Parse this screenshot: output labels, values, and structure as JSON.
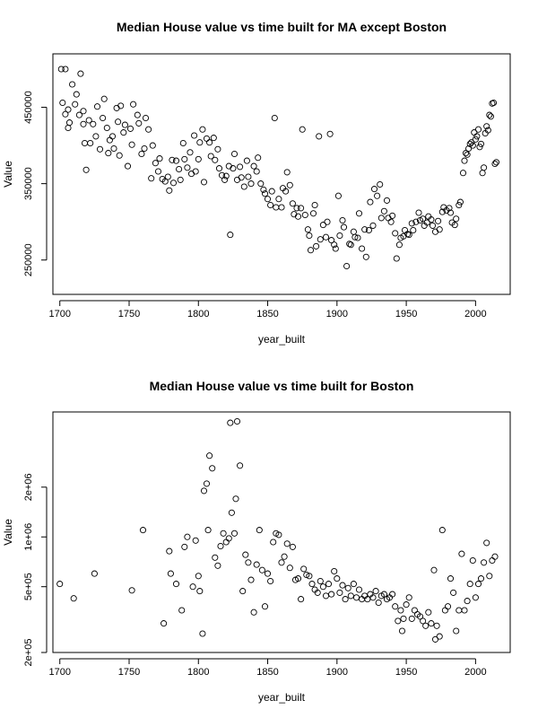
{
  "chart_data": [
    {
      "type": "scatter",
      "title": "Median House value vs time built for MA except Boston",
      "xlabel": "year_built",
      "ylabel": "Value",
      "xlim": [
        1695,
        2025
      ],
      "ylim": [
        205000,
        520000
      ],
      "x_ticks": [
        1700,
        1750,
        1800,
        1850,
        1900,
        1950,
        2000
      ],
      "y_ticks": [
        250000,
        350000,
        450000
      ],
      "y_tick_labels": [
        "250000",
        "350000",
        "450000"
      ],
      "grid": false,
      "legend": "none",
      "points": [
        [
          1701,
          500000
        ],
        [
          1702,
          456000
        ],
        [
          1704,
          441000
        ],
        [
          1704,
          500000
        ],
        [
          1706,
          423000
        ],
        [
          1706,
          447000
        ],
        [
          1707,
          430000
        ],
        [
          1709,
          480000
        ],
        [
          1711,
          454000
        ],
        [
          1712,
          467000
        ],
        [
          1714,
          440000
        ],
        [
          1715,
          494000
        ],
        [
          1717,
          428000
        ],
        [
          1717,
          445000
        ],
        [
          1718,
          403000
        ],
        [
          1719,
          368000
        ],
        [
          1721,
          433000
        ],
        [
          1722,
          403000
        ],
        [
          1724,
          428000
        ],
        [
          1726,
          412000
        ],
        [
          1727,
          451000
        ],
        [
          1729,
          395000
        ],
        [
          1731,
          436000
        ],
        [
          1732,
          461000
        ],
        [
          1734,
          423000
        ],
        [
          1735,
          390000
        ],
        [
          1736,
          407000
        ],
        [
          1738,
          412000
        ],
        [
          1739,
          396000
        ],
        [
          1741,
          449000
        ],
        [
          1742,
          431000
        ],
        [
          1743,
          387000
        ],
        [
          1744,
          452000
        ],
        [
          1746,
          417000
        ],
        [
          1747,
          427000
        ],
        [
          1749,
          373000
        ],
        [
          1751,
          422000
        ],
        [
          1752,
          401000
        ],
        [
          1753,
          454000
        ],
        [
          1756,
          440000
        ],
        [
          1757,
          429000
        ],
        [
          1759,
          389000
        ],
        [
          1761,
          396000
        ],
        [
          1762,
          436000
        ],
        [
          1764,
          421000
        ],
        [
          1766,
          357000
        ],
        [
          1767,
          400000
        ],
        [
          1769,
          377000
        ],
        [
          1771,
          366000
        ],
        [
          1772,
          383000
        ],
        [
          1774,
          356000
        ],
        [
          1776,
          353000
        ],
        [
          1778,
          359000
        ],
        [
          1779,
          341000
        ],
        [
          1781,
          381000
        ],
        [
          1782,
          351000
        ],
        [
          1784,
          380000
        ],
        [
          1786,
          369000
        ],
        [
          1787,
          355000
        ],
        [
          1789,
          403000
        ],
        [
          1790,
          382000
        ],
        [
          1792,
          371000
        ],
        [
          1794,
          391000
        ],
        [
          1795,
          363000
        ],
        [
          1797,
          413000
        ],
        [
          1798,
          366000
        ],
        [
          1800,
          382000
        ],
        [
          1801,
          404000
        ],
        [
          1803,
          421000
        ],
        [
          1804,
          352000
        ],
        [
          1806,
          409000
        ],
        [
          1808,
          404000
        ],
        [
          1809,
          386000
        ],
        [
          1811,
          410000
        ],
        [
          1812,
          381000
        ],
        [
          1814,
          395000
        ],
        [
          1815,
          370000
        ],
        [
          1817,
          361000
        ],
        [
          1819,
          355000
        ],
        [
          1820,
          360000
        ],
        [
          1822,
          373000
        ],
        [
          1823,
          283000
        ],
        [
          1825,
          370000
        ],
        [
          1826,
          389000
        ],
        [
          1828,
          355000
        ],
        [
          1830,
          372000
        ],
        [
          1831,
          358000
        ],
        [
          1833,
          346000
        ],
        [
          1835,
          380000
        ],
        [
          1836,
          359000
        ],
        [
          1838,
          350000
        ],
        [
          1840,
          373000
        ],
        [
          1842,
          366000
        ],
        [
          1843,
          384000
        ],
        [
          1845,
          350000
        ],
        [
          1847,
          342000
        ],
        [
          1848,
          337000
        ],
        [
          1850,
          330000
        ],
        [
          1852,
          322000
        ],
        [
          1853,
          340000
        ],
        [
          1855,
          436000
        ],
        [
          1856,
          319000
        ],
        [
          1858,
          330000
        ],
        [
          1860,
          319000
        ],
        [
          1861,
          344000
        ],
        [
          1863,
          340000
        ],
        [
          1864,
          365000
        ],
        [
          1866,
          348000
        ],
        [
          1868,
          324000
        ],
        [
          1869,
          310000
        ],
        [
          1871,
          318000
        ],
        [
          1872,
          307000
        ],
        [
          1874,
          318000
        ],
        [
          1875,
          421000
        ],
        [
          1877,
          309000
        ],
        [
          1879,
          290000
        ],
        [
          1880,
          282000
        ],
        [
          1881,
          263000
        ],
        [
          1883,
          311000
        ],
        [
          1884,
          322000
        ],
        [
          1885,
          268000
        ],
        [
          1887,
          412000
        ],
        [
          1888,
          277000
        ],
        [
          1890,
          296000
        ],
        [
          1892,
          280000
        ],
        [
          1893,
          300000
        ],
        [
          1895,
          415000
        ],
        [
          1896,
          276000
        ],
        [
          1898,
          270000
        ],
        [
          1899,
          265000
        ],
        [
          1901,
          334000
        ],
        [
          1902,
          282000
        ],
        [
          1904,
          302000
        ],
        [
          1905,
          293000
        ],
        [
          1907,
          242000
        ],
        [
          1909,
          271000
        ],
        [
          1910,
          270000
        ],
        [
          1912,
          287000
        ],
        [
          1913,
          280000
        ],
        [
          1915,
          279000
        ],
        [
          1916,
          311000
        ],
        [
          1918,
          265000
        ],
        [
          1920,
          290000
        ],
        [
          1921,
          254000
        ],
        [
          1923,
          289000
        ],
        [
          1924,
          326000
        ],
        [
          1926,
          295000
        ],
        [
          1927,
          343000
        ],
        [
          1929,
          334000
        ],
        [
          1931,
          349000
        ],
        [
          1932,
          305000
        ],
        [
          1934,
          314000
        ],
        [
          1936,
          328000
        ],
        [
          1937,
          305000
        ],
        [
          1939,
          300000
        ],
        [
          1940,
          308000
        ],
        [
          1942,
          285000
        ],
        [
          1943,
          252000
        ],
        [
          1945,
          270000
        ],
        [
          1946,
          279000
        ],
        [
          1948,
          281000
        ],
        [
          1949,
          289000
        ],
        [
          1951,
          284000
        ],
        [
          1952,
          283000
        ],
        [
          1954,
          298000
        ],
        [
          1955,
          289000
        ],
        [
          1957,
          300000
        ],
        [
          1959,
          312000
        ],
        [
          1960,
          302000
        ],
        [
          1962,
          304000
        ],
        [
          1963,
          295000
        ],
        [
          1965,
          299000
        ],
        [
          1966,
          307000
        ],
        [
          1968,
          303000
        ],
        [
          1969,
          295000
        ],
        [
          1971,
          287000
        ],
        [
          1973,
          301000
        ],
        [
          1974,
          290000
        ],
        [
          1976,
          313000
        ],
        [
          1977,
          319000
        ],
        [
          1979,
          315000
        ],
        [
          1981,
          318000
        ],
        [
          1982,
          312000
        ],
        [
          1983,
          299000
        ],
        [
          1985,
          296000
        ],
        [
          1986,
          304000
        ],
        [
          1988,
          322000
        ],
        [
          1989,
          326000
        ],
        [
          1991,
          364000
        ],
        [
          1992,
          380000
        ],
        [
          1993,
          390000
        ],
        [
          1994,
          388000
        ],
        [
          1995,
          396000
        ],
        [
          1996,
          402000
        ],
        [
          1997,
          404000
        ],
        [
          1998,
          400000
        ],
        [
          1999,
          417000
        ],
        [
          2000,
          408000
        ],
        [
          2001,
          412000
        ],
        [
          2002,
          421000
        ],
        [
          2003,
          398000
        ],
        [
          2004,
          402000
        ],
        [
          2005,
          364000
        ],
        [
          2006,
          371000
        ],
        [
          2007,
          416000
        ],
        [
          2008,
          425000
        ],
        [
          2009,
          420000
        ],
        [
          2010,
          440000
        ],
        [
          2011,
          438000
        ],
        [
          2012,
          455000
        ],
        [
          2013,
          456000
        ],
        [
          2014,
          376000
        ],
        [
          2015,
          378000
        ]
      ]
    },
    {
      "type": "scatter",
      "title": "Median House value vs time built for Boston",
      "xlabel": "year_built",
      "ylabel": "Value",
      "y_scale": "log",
      "xlim": [
        1695,
        2025
      ],
      "ylim": [
        200000,
        5700000
      ],
      "x_ticks": [
        1700,
        1750,
        1800,
        1850,
        1900,
        1950,
        2000
      ],
      "y_ticks": [
        200000,
        500000,
        1000000,
        2000000
      ],
      "y_tick_labels": [
        "2e+05",
        "5e+05",
        "1e+06",
        "2e+06"
      ],
      "grid": false,
      "legend": "none",
      "points": [
        [
          1700,
          520000
        ],
        [
          1710,
          425000
        ],
        [
          1725,
          600000
        ],
        [
          1752,
          475000
        ],
        [
          1760,
          1100000
        ],
        [
          1775,
          300000
        ],
        [
          1779,
          820000
        ],
        [
          1780,
          600000
        ],
        [
          1784,
          520000
        ],
        [
          1788,
          360000
        ],
        [
          1790,
          870000
        ],
        [
          1792,
          1000000
        ],
        [
          1796,
          500000
        ],
        [
          1798,
          950000
        ],
        [
          1800,
          580000
        ],
        [
          1801,
          470000
        ],
        [
          1803,
          260000
        ],
        [
          1804,
          1900000
        ],
        [
          1806,
          2100000
        ],
        [
          1807,
          1100000
        ],
        [
          1808,
          3100000
        ],
        [
          1810,
          2600000
        ],
        [
          1812,
          750000
        ],
        [
          1814,
          670000
        ],
        [
          1816,
          880000
        ],
        [
          1818,
          1050000
        ],
        [
          1820,
          930000
        ],
        [
          1822,
          980000
        ],
        [
          1823,
          4900000
        ],
        [
          1824,
          1400000
        ],
        [
          1826,
          1050000
        ],
        [
          1827,
          1700000
        ],
        [
          1828,
          5000000
        ],
        [
          1830,
          2700000
        ],
        [
          1832,
          470000
        ],
        [
          1834,
          780000
        ],
        [
          1836,
          700000
        ],
        [
          1838,
          550000
        ],
        [
          1840,
          350000
        ],
        [
          1842,
          680000
        ],
        [
          1844,
          1100000
        ],
        [
          1846,
          630000
        ],
        [
          1848,
          380000
        ],
        [
          1850,
          600000
        ],
        [
          1852,
          540000
        ],
        [
          1854,
          930000
        ],
        [
          1856,
          1050000
        ],
        [
          1858,
          1030000
        ],
        [
          1860,
          700000
        ],
        [
          1862,
          760000
        ],
        [
          1864,
          910000
        ],
        [
          1866,
          650000
        ],
        [
          1868,
          870000
        ],
        [
          1870,
          550000
        ],
        [
          1872,
          560000
        ],
        [
          1874,
          420000
        ],
        [
          1876,
          640000
        ],
        [
          1878,
          590000
        ],
        [
          1880,
          580000
        ],
        [
          1882,
          520000
        ],
        [
          1884,
          480000
        ],
        [
          1886,
          460000
        ],
        [
          1888,
          540000
        ],
        [
          1890,
          500000
        ],
        [
          1892,
          440000
        ],
        [
          1894,
          520000
        ],
        [
          1896,
          450000
        ],
        [
          1898,
          620000
        ],
        [
          1900,
          560000
        ],
        [
          1902,
          460000
        ],
        [
          1904,
          510000
        ],
        [
          1906,
          420000
        ],
        [
          1908,
          490000
        ],
        [
          1910,
          440000
        ],
        [
          1912,
          520000
        ],
        [
          1914,
          430000
        ],
        [
          1916,
          480000
        ],
        [
          1918,
          420000
        ],
        [
          1920,
          440000
        ],
        [
          1922,
          420000
        ],
        [
          1924,
          450000
        ],
        [
          1926,
          430000
        ],
        [
          1928,
          470000
        ],
        [
          1930,
          400000
        ],
        [
          1932,
          440000
        ],
        [
          1934,
          450000
        ],
        [
          1936,
          420000
        ],
        [
          1938,
          430000
        ],
        [
          1940,
          450000
        ],
        [
          1942,
          380000
        ],
        [
          1944,
          310000
        ],
        [
          1946,
          360000
        ],
        [
          1947,
          270000
        ],
        [
          1948,
          320000
        ],
        [
          1950,
          390000
        ],
        [
          1952,
          430000
        ],
        [
          1954,
          320000
        ],
        [
          1956,
          360000
        ],
        [
          1958,
          340000
        ],
        [
          1960,
          330000
        ],
        [
          1962,
          310000
        ],
        [
          1964,
          290000
        ],
        [
          1966,
          350000
        ],
        [
          1968,
          300000
        ],
        [
          1970,
          630000
        ],
        [
          1971,
          240000
        ],
        [
          1972,
          290000
        ],
        [
          1974,
          250000
        ],
        [
          1976,
          1100000
        ],
        [
          1978,
          360000
        ],
        [
          1980,
          380000
        ],
        [
          1982,
          560000
        ],
        [
          1984,
          460000
        ],
        [
          1986,
          270000
        ],
        [
          1988,
          360000
        ],
        [
          1990,
          790000
        ],
        [
          1992,
          360000
        ],
        [
          1994,
          410000
        ],
        [
          1996,
          520000
        ],
        [
          1998,
          720000
        ],
        [
          2000,
          430000
        ],
        [
          2002,
          520000
        ],
        [
          2004,
          560000
        ],
        [
          2006,
          700000
        ],
        [
          2008,
          920000
        ],
        [
          2010,
          580000
        ],
        [
          2012,
          720000
        ],
        [
          2014,
          760000
        ]
      ]
    }
  ]
}
